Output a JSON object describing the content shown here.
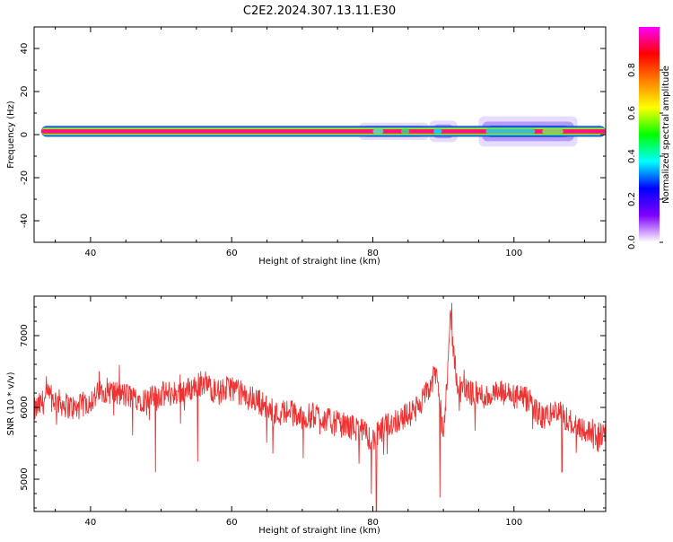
{
  "page": {
    "title": "C2E2.2024.307.13.11.E30"
  },
  "chart_data": [
    {
      "type": "heatmap",
      "xlabel": "Height of straight line (km)",
      "ylabel": "Frequency (Hz)",
      "xlim": [
        32,
        113
      ],
      "ylim": [
        -50,
        50
      ],
      "xticks": [
        40,
        60,
        80,
        100
      ],
      "yticks": [
        -40,
        -20,
        0,
        20,
        40
      ],
      "grid": false,
      "colorbar": {
        "label": "Normalized spectral amplitude",
        "range": [
          0,
          1
        ],
        "ticks": [
          "0.0",
          "0.2",
          "0.4",
          "0.6",
          "0.8"
        ],
        "colors": [
          "#ffffff",
          "#8000ff",
          "#0000ff",
          "#00ffff",
          "#00ff00",
          "#ffff00",
          "#ff8000",
          "#ff0000",
          "#ff00ff"
        ]
      },
      "band": {
        "center_hz": 1.5,
        "core_halfwidth_hz": 1.2,
        "outer_halfwidth_hz": 2.5,
        "spread_segments": [
          {
            "x_start": 78,
            "x_end": 88,
            "halfwidth_hz": 4
          },
          {
            "x_start": 88,
            "x_end": 92,
            "halfwidth_hz": 5
          },
          {
            "x_start": 95,
            "x_end": 109,
            "halfwidth_hz": 7
          }
        ]
      }
    },
    {
      "type": "line",
      "xlabel": "Height of straight line (km)",
      "ylabel": "SNR (10 * v/v)",
      "xlim": [
        32,
        113
      ],
      "ylim": [
        4550,
        7550
      ],
      "xticks": [
        40,
        60,
        80,
        100
      ],
      "yticks": [
        5000,
        6000,
        7000
      ],
      "grid": false,
      "series": [
        {
          "color": "#ee3333",
          "x": [
            32,
            34,
            36,
            38,
            40,
            42,
            44,
            46,
            48,
            50,
            52,
            54,
            56,
            58,
            60,
            62,
            64,
            66,
            68,
            70,
            72,
            74,
            76,
            78,
            80,
            82,
            84,
            86,
            87,
            88,
            89,
            90,
            91,
            92,
            94,
            96,
            98,
            100,
            102,
            104,
            106,
            108,
            110,
            112,
            113
          ],
          "y": [
            5950,
            6150,
            6050,
            5980,
            6100,
            6250,
            6180,
            6150,
            6100,
            6180,
            6200,
            6250,
            6350,
            6200,
            6280,
            6150,
            6080,
            5900,
            5950,
            5850,
            5900,
            5800,
            5750,
            5700,
            5550,
            5750,
            5850,
            5950,
            6100,
            6250,
            6500,
            5600,
            7200,
            6300,
            6200,
            6150,
            6200,
            6150,
            6100,
            5850,
            5950,
            5800,
            5700,
            5550,
            5700
          ],
          "noise_range": 180,
          "spikes": [
            {
              "x": 80.5,
              "y": 4550
            },
            {
              "x": 79.8,
              "y": 4800
            },
            {
              "x": 89.5,
              "y": 4750
            },
            {
              "x": 91.2,
              "y": 7450
            },
            {
              "x": 49.2,
              "y": 5100
            },
            {
              "x": 55.2,
              "y": 5250
            },
            {
              "x": 106.8,
              "y": 5100
            }
          ]
        }
      ]
    }
  ]
}
